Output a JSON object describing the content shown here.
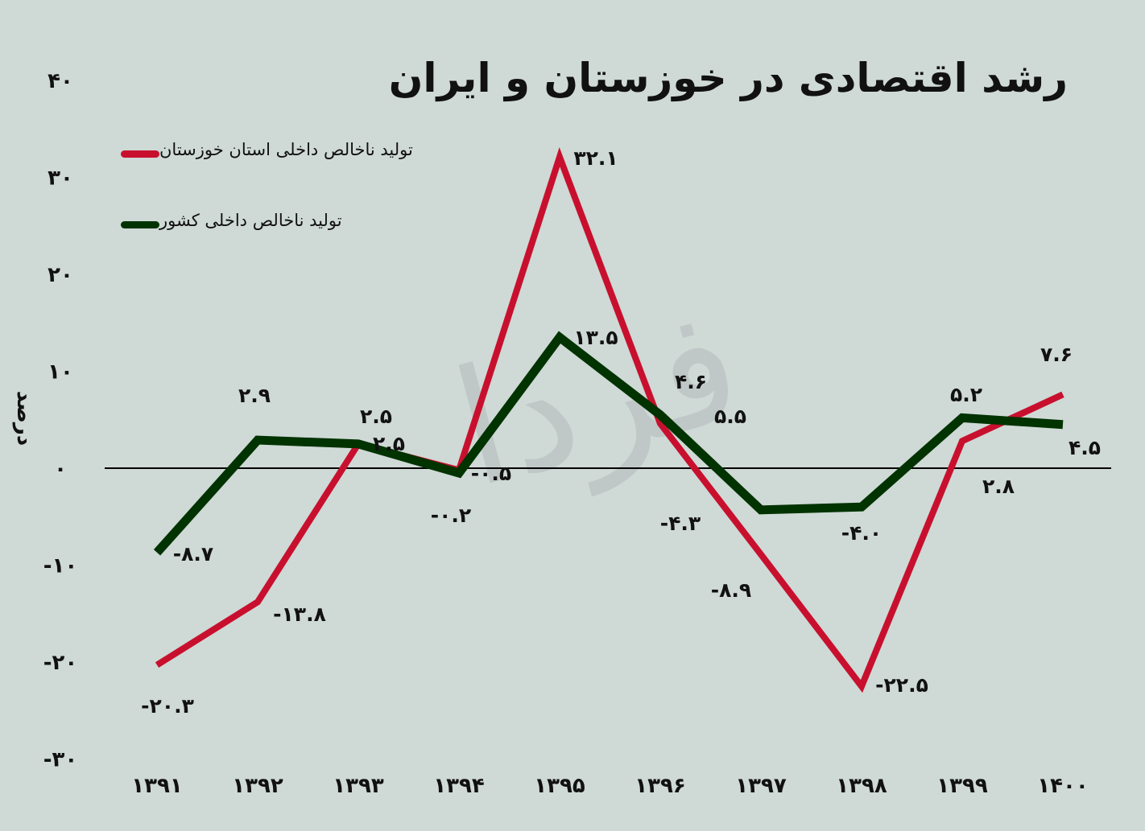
{
  "chart_data": {
    "type": "line",
    "title": "رشد اقتصادی در خوزستان و ایران",
    "ylabel": "درصد",
    "xlabel": "",
    "categories": [
      "۱۳۹۱",
      "۱۳۹۲",
      "۱۳۹۳",
      "۱۳۹۴",
      "۱۳۹۵",
      "۱۳۹۶",
      "۱۳۹۷",
      "۱۳۹۸",
      "۱۳۹۹",
      "۱۴۰۰"
    ],
    "ylim": [
      -30,
      40
    ],
    "yticks": [
      40,
      30,
      20,
      10,
      0,
      -10,
      -20,
      -30
    ],
    "ytick_labels": [
      "۴۰",
      "۳۰",
      "۲۰",
      "۱۰",
      "۰",
      "-۱۰",
      "-۲۰",
      "-۳۰"
    ],
    "grid": false,
    "legend_position": "top-left",
    "series": [
      {
        "name": "تولید ناخالص داخلی استان خوزستان",
        "color": "#c8102e",
        "values": [
          -20.3,
          -13.8,
          2.5,
          -0.2,
          32.1,
          4.6,
          -8.9,
          -22.5,
          2.8,
          7.6
        ],
        "labels": [
          "-۲۰.۳",
          "-۱۳.۸",
          "۲.۵",
          "-۰.۲",
          "۳۲.۱",
          "۴.۶",
          "-۸.۹",
          "-۲۲.۵",
          "۲.۸",
          "۷.۶"
        ]
      },
      {
        "name": "تولید ناخالص داخلی کشور",
        "color": "#003300",
        "values": [
          -8.7,
          2.9,
          2.5,
          -0.5,
          13.5,
          5.5,
          -4.3,
          -4.0,
          5.2,
          4.5
        ],
        "labels": [
          "-۸.۷",
          "۲.۹",
          "۲.۵",
          "-۰.۵",
          "۱۳.۵",
          "۵.۵",
          "-۴.۳",
          "-۴.۰",
          "۵.۲",
          "۴.۵"
        ]
      }
    ]
  }
}
